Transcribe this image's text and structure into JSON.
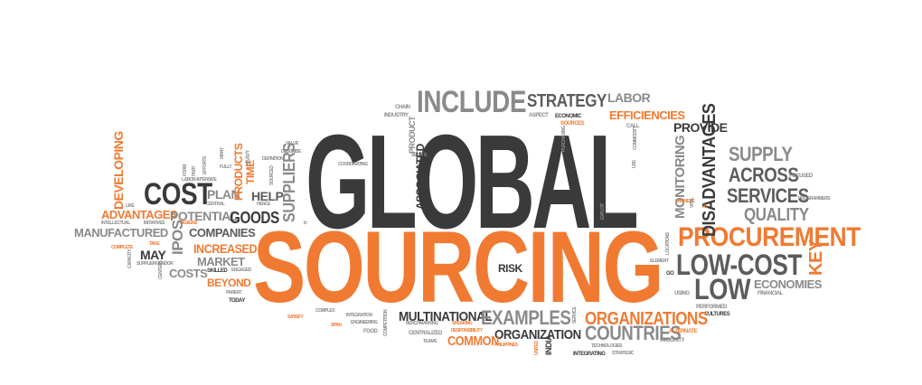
{
  "words": {
    "global": "GLOBAL",
    "sourcing": "SOURCING",
    "include": "INCLUDE",
    "strategy": "STRATEGY",
    "labor": "LABOR",
    "efficiencies": "EFFICIENCIES",
    "provide": "PROVIDE",
    "supply": "SUPPLY",
    "across": "ACROSS",
    "services": "SERVICES",
    "quality": "QUALITY",
    "procurement": "PROCUREMENT",
    "low_cost": "LOW-COST",
    "low": "LOW",
    "economies": "ECONOMIES",
    "key": "KEY",
    "disadvantages": "DISADVANTAGES",
    "monitoring": "MONITORING",
    "cost": "COST",
    "advantages": "ADVANTAGES",
    "manufactured": "MANUFACTURED",
    "potential": "POTENTIAL",
    "companies": "COMPANIES",
    "goods": "GOODS",
    "plan": "PLAN",
    "help": "HELP",
    "suppliers": "SUPPLIERS",
    "products": "PRODUCTS",
    "time": "TIME",
    "increased": "INCREASED",
    "market": "MARKET",
    "costs": "COSTS",
    "beyond": "BEYOND",
    "may": "MAY",
    "ipos": "IPOS",
    "developing": "DEVELOPING",
    "multinational": "MULTINATIONAL",
    "examples": "EXAMPLES",
    "organizations": "ORGANIZATIONS",
    "organization": "ORGANIZATION",
    "countries": "COUNTRIES",
    "common": "COMMON",
    "risk": "RISK",
    "associated": "ASSOCIATED",
    "chain": "CHAIN",
    "industry": "INDUSTRY",
    "aspect": "ASPECT",
    "economic": "ECONOMIC",
    "sources": "SOURCES",
    "call": "CALL",
    "purchasing": "PURCHASING",
    "commodity": "COMMODITY",
    "use": "USE",
    "focused": "FOCUSED",
    "programmers": "PROGRAMMERS",
    "harness": "HARNESS",
    "vital": "VITAL",
    "al": "AL",
    "exploit": "EXPLOIT",
    "locations": "LOCATIONS",
    "element": "ELEMENT",
    "go": "GO",
    "using": "USING",
    "financial": "FINANCIAL",
    "performed": "PERFORMED",
    "cultures": "CULTURES",
    "alternate": "ALTERNATE",
    "majority": "MAJORITY",
    "technologies": "TECHNOLOGIES",
    "integrating": "INTEGRATING",
    "strategic": "STRATEGIC",
    "philippines": "PHILIPPINES",
    "india": "INDIA",
    "united": "UNITED",
    "service": "SERVICE",
    "teams": "TEAMS",
    "centralized": "CENTRALIZED",
    "responsibility": "RESPONSIBILITY",
    "speaking": "SPEAKING",
    "benchmarking": "BENCHMARKING",
    "competition": "COMPETITION",
    "food": "FOOD",
    "engineering": "ENGINEERING",
    "integration": "INTEGRATION",
    "span": "SPAN",
    "complex": "COMPLEX",
    "satisfy": "SATISFY",
    "today": "TODAY",
    "parent": "PARENT",
    "skilled": "SKILLED",
    "engaged": "ENGAGED",
    "supplier_vendor": "SUPPLIER/VENDOR",
    "initiatives": "INITIATIVES",
    "complete": "COMPLETE",
    "take": "TAKE",
    "capacity": "CAPACITY",
    "centers": "CENTERS",
    "intellectual": "INTELLECTUAL",
    "like": "LIKE",
    "designs": "DESIGNS",
    "central": "CENTRAL",
    "labor_intensive": "LABOR-INTENSIVE",
    "fully": "FULLY",
    "many": "MANY",
    "form": "FORM",
    "part": "PART",
    "efforts": "EFFORTS",
    "value": "VALUE",
    "describe": "DESCRIBE",
    "definition": "DEFINITION",
    "heavy": "HEAVY",
    "hence": "HENCE",
    "sourced": "SOURCED",
    "coordinating": "COORDINATING",
    "setups": "SETUPS",
    "product": "PRODUCT",
    "it": "IT"
  }
}
